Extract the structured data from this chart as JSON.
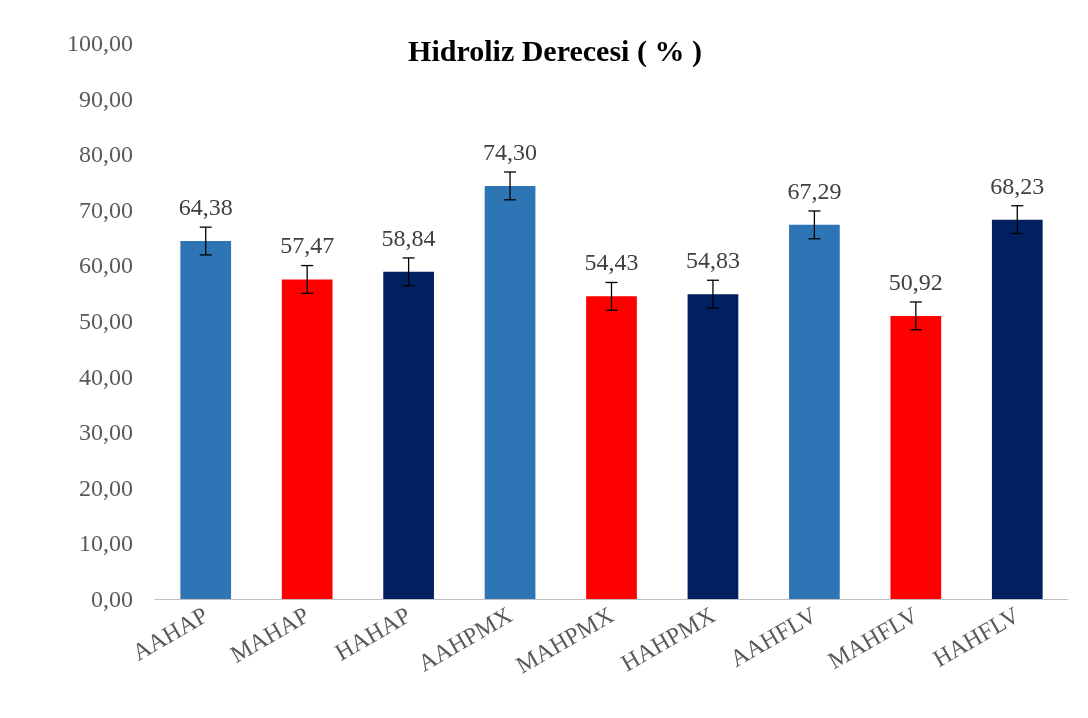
{
  "chart_data": {
    "type": "bar",
    "title": "Hidroliz Derecesi ( % )",
    "categories": [
      "AAHAP",
      "MAHAP",
      "HAHAP",
      "AAHPMX",
      "MAHPMX",
      "HAHPMX",
      "AAHFLV",
      "MAHFLV",
      "HAHFLV"
    ],
    "values": [
      64.38,
      57.47,
      58.84,
      74.3,
      54.43,
      54.83,
      67.29,
      50.92,
      68.23
    ],
    "colors": [
      "#2e75b6",
      "#ff0000",
      "#002060",
      "#2e75b6",
      "#ff0000",
      "#002060",
      "#2e75b6",
      "#ff0000",
      "#002060"
    ],
    "errors": [
      2.5,
      2.5,
      2.5,
      2.5,
      2.5,
      2.5,
      2.5,
      2.5,
      2.5
    ],
    "value_labels": [
      "64,38",
      "57,47",
      "58,84",
      "74,30",
      "54,43",
      "54,83",
      "67,29",
      "50,92",
      "68,23"
    ],
    "ylim": [
      0,
      100
    ],
    "yticks": [
      {
        "value": 0,
        "label": "0,00"
      },
      {
        "value": 10,
        "label": "10,00"
      },
      {
        "value": 20,
        "label": "20,00"
      },
      {
        "value": 30,
        "label": "30,00"
      },
      {
        "value": 40,
        "label": "40,00"
      },
      {
        "value": 50,
        "label": "50,00"
      },
      {
        "value": 60,
        "label": "60,00"
      },
      {
        "value": 70,
        "label": "70,00"
      },
      {
        "value": 80,
        "label": "80,00"
      },
      {
        "value": 90,
        "label": "90,00"
      },
      {
        "value": 100,
        "label": "100,00"
      }
    ],
    "grid": false
  }
}
